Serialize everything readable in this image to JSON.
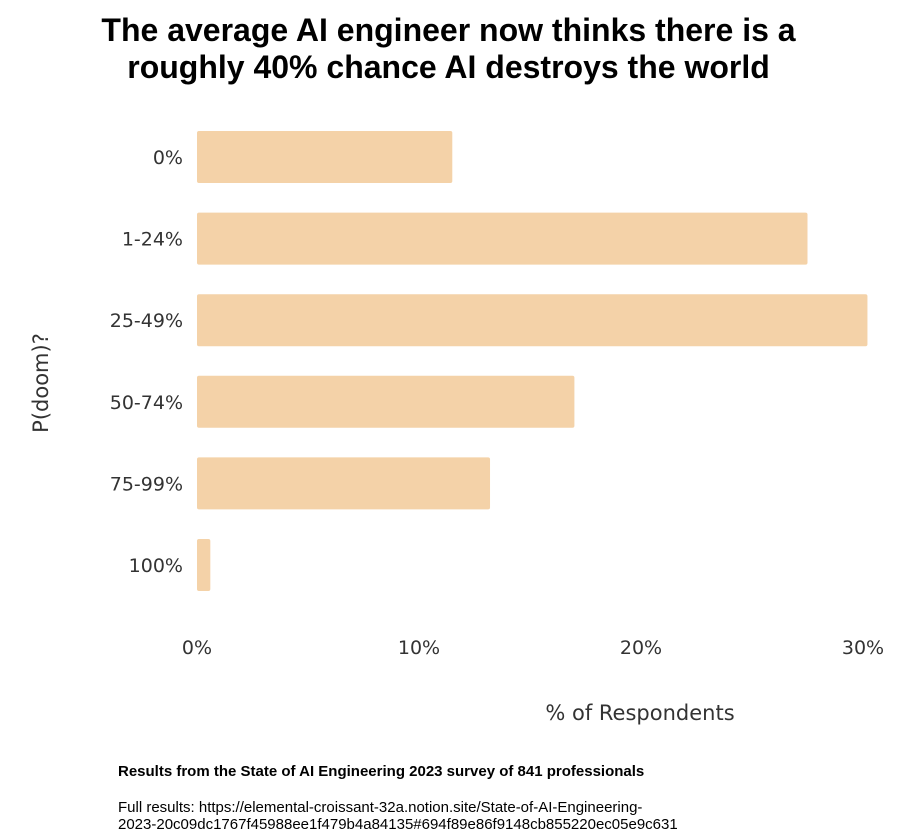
{
  "title_line1": "The average AI engineer now thinks there is a",
  "title_line2": "roughly 40% chance AI destroys the world",
  "caption": "Results from the State of AI Engineering 2023 survey of 841 professionals",
  "source_line1": "Full results: https://elemental-croissant-32a.notion.site/State-of-AI-Engineering-",
  "source_line2": "2023-20c09dc1767f45988ee1f479b4a84135#694f89e86f9148cb855220ec05e9c631",
  "chart_data": {
    "type": "bar",
    "orientation": "horizontal",
    "categories": [
      "0%",
      "1-24%",
      "25-49%",
      "50-74%",
      "75-99%",
      "100%"
    ],
    "values": [
      11.5,
      27.5,
      30.2,
      17.0,
      13.2,
      0.6
    ],
    "xlabel": "% of Respondents",
    "ylabel": "P(doom)?",
    "xticks": [
      "0%",
      "10%",
      "20%",
      "30%"
    ],
    "xtick_values": [
      0,
      10,
      20,
      30
    ],
    "xlim": [
      0,
      30.2
    ],
    "grid": false,
    "bar_color": "#f4d2a8"
  }
}
